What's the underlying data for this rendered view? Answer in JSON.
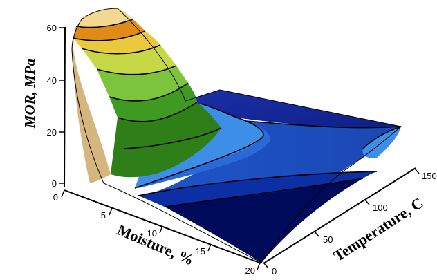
{
  "chart_data": {
    "type": "surface",
    "title": "",
    "zlabel": "MOR, MPa",
    "xlabel": "Moisture, %",
    "ylabel": "Temperature, C",
    "x_ticks": [
      "0",
      "5",
      "10",
      "15",
      "20"
    ],
    "y_ticks": [
      "0",
      "50",
      "100",
      "150"
    ],
    "z_ticks": [
      "0",
      "20",
      "40",
      "60"
    ],
    "xlim": [
      0,
      20
    ],
    "ylim": [
      0,
      150
    ],
    "zlim": [
      0,
      60
    ],
    "grid": false,
    "legend": "none",
    "contour_lines": true,
    "points": [
      {
        "moisture": 0,
        "temperature": 0,
        "mor": 52
      },
      {
        "moisture": 0,
        "temperature": 25,
        "mor": 59
      },
      {
        "moisture": 20,
        "temperature": 0,
        "mor": 4
      },
      {
        "moisture": 10,
        "temperature": 150,
        "mor": 17
      },
      {
        "moisture": 20,
        "temperature": 150,
        "mor": 27
      }
    ],
    "colorscale": [
      "#000a4a",
      "#0b2b9e",
      "#1a56c6",
      "#3d8ee6",
      "#1c6b14",
      "#3f9a22",
      "#8acc3a",
      "#e8e040",
      "#f5a020",
      "#d96a10",
      "#fbe0a0"
    ]
  }
}
